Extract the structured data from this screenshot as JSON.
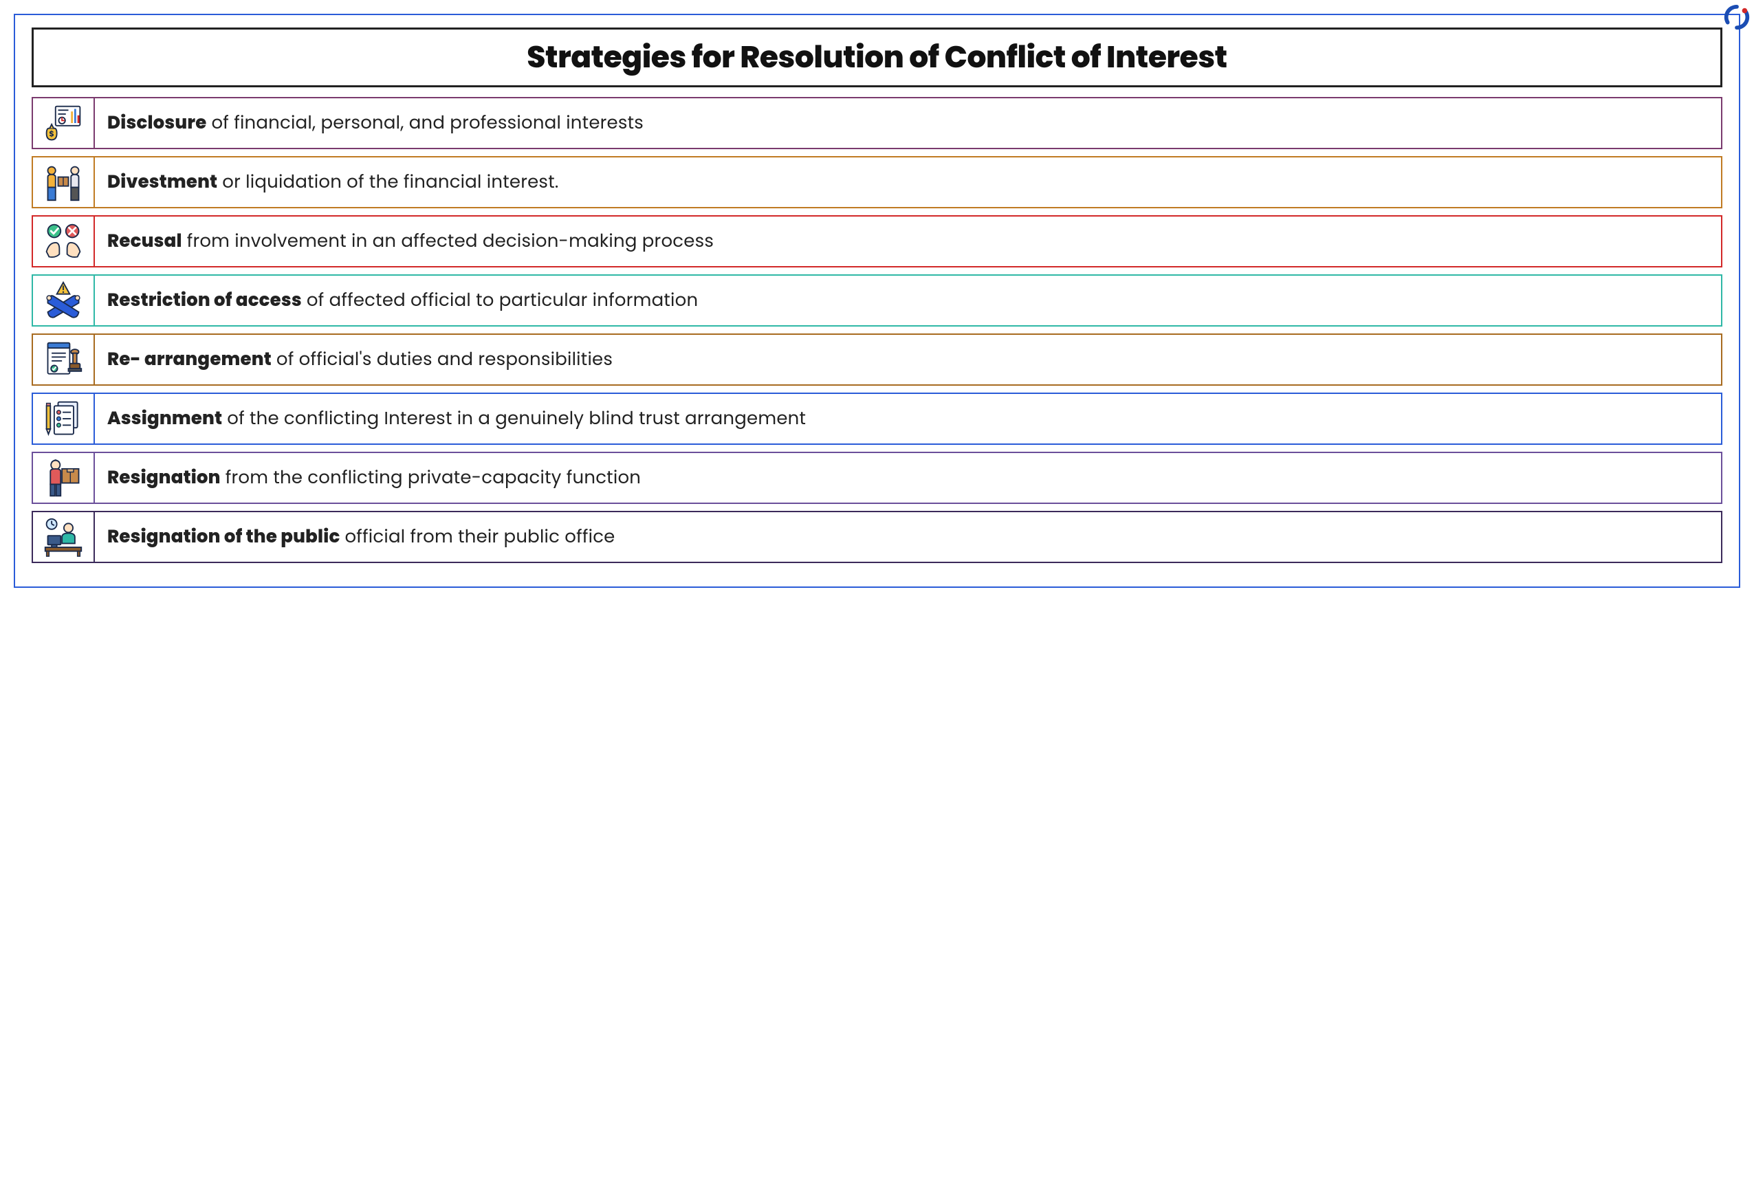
{
  "title": "Strategies for Resolution of Conflict of Interest",
  "page": {
    "outer_border_color": "#2a5cd8",
    "title_border_color": "#222222",
    "title_fontsize": 44,
    "row_fontsize": 26,
    "background": "#ffffff",
    "text_color": "#222222",
    "row_gap": 10,
    "icon_cell_width": 90
  },
  "rows": [
    {
      "border_color": "#7a3a6e",
      "bold": "Disclosure",
      "rest": "of financial, personal, and professional interests",
      "icon": "report-money-icon"
    },
    {
      "border_color": "#c07b23",
      "bold": "Divestment",
      "rest": "or liquidation of the financial interest.",
      "icon": "handover-box-icon"
    },
    {
      "border_color": "#d22828",
      "bold": "Recusal",
      "rest": "from involvement in an affected decision-making process",
      "icon": "hands-yes-no-icon"
    },
    {
      "border_color": "#2fb8a6",
      "bold": "Restriction of access",
      "rest": "of affected official to particular information",
      "icon": "crossed-arms-warning-icon"
    },
    {
      "border_color": "#a86b20",
      "bold": "Re- arrangement",
      "rest": "of official's duties and responsibilities",
      "icon": "document-stamp-icon"
    },
    {
      "border_color": "#2a5cd8",
      "bold": "Assignment",
      "rest": "of the conflicting Interest in a genuinely blind trust arrangement",
      "icon": "checklist-pencil-icon"
    },
    {
      "border_color": "#6b4f9a",
      "bold": "Resignation",
      "rest": "from the conflicting private-capacity function",
      "icon": "person-box-icon"
    },
    {
      "border_color": "#3b2a5a",
      "bold": "Resignation of the public",
      "rest": "official from their public office",
      "icon": "desk-clock-person-icon"
    }
  ],
  "corner_logo": {
    "swirl_color_1": "#1b4db3",
    "swirl_color_2": "#d22828"
  }
}
